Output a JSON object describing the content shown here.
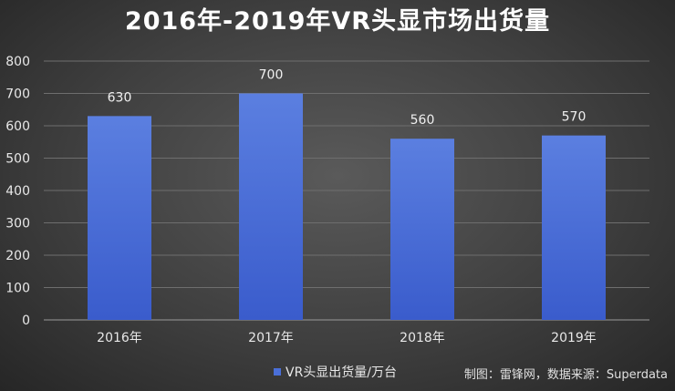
{
  "chart_data": {
    "type": "bar",
    "title": "2016年-2019年VR头显市场出货量",
    "categories": [
      "2016年",
      "2017年",
      "2018年",
      "2019年"
    ],
    "series": [
      {
        "name": "VR头显出货量/万台",
        "values": [
          630,
          700,
          560,
          570
        ]
      }
    ],
    "data_labels": [
      "630",
      "700",
      "560",
      "570"
    ],
    "yticks": [
      "0",
      "100",
      "200",
      "300",
      "400",
      "500",
      "600",
      "700",
      "800"
    ],
    "ylim": [
      0,
      800
    ],
    "grid": true,
    "legend_position": "bottom",
    "bar_color": "#4a6fd8"
  },
  "credit": "制图：雷锋网，数据来源：Superdata"
}
